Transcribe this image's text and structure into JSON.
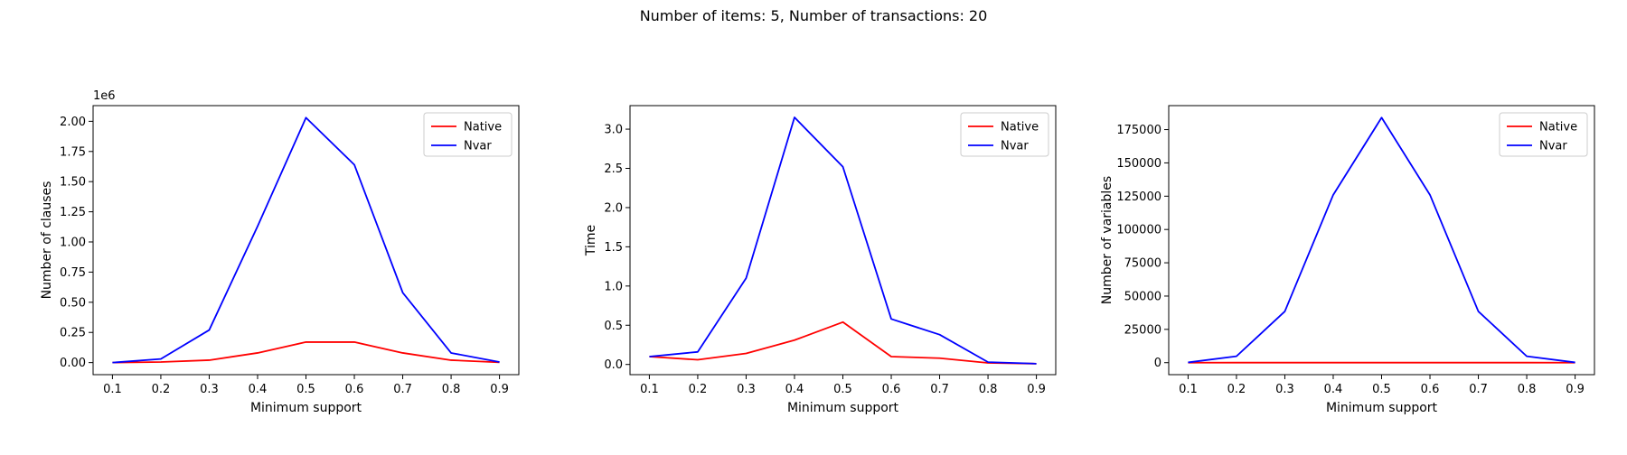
{
  "figure": {
    "title": "Number of items: 5, Number of transactions: 20"
  },
  "colors": {
    "native": "#ff0000",
    "nvar": "#0000ff"
  },
  "chart_data": [
    {
      "type": "line",
      "title": "",
      "xlabel": "Minimum support",
      "ylabel": "Number of clauses",
      "offset_label": "1e6",
      "x": [
        0.1,
        0.2,
        0.3,
        0.4,
        0.5,
        0.6,
        0.7,
        0.8,
        0.9
      ],
      "xticks": [
        "0.1",
        "0.2",
        "0.3",
        "0.4",
        "0.5",
        "0.6",
        "0.7",
        "0.8",
        "0.9"
      ],
      "ylim": [
        -0.1,
        2.13
      ],
      "yticks": [
        "0.00",
        "0.25",
        "0.50",
        "0.75",
        "1.00",
        "1.25",
        "1.50",
        "1.75",
        "2.00"
      ],
      "ytick_values": [
        0,
        0.25,
        0.5,
        0.75,
        1.0,
        1.25,
        1.5,
        1.75,
        2.0
      ],
      "legend": "top-right",
      "series": [
        {
          "name": "Native",
          "color": "#ff0000",
          "values": [
            0.0,
            0.005,
            0.02,
            0.08,
            0.17,
            0.17,
            0.08,
            0.02,
            0.002
          ]
        },
        {
          "name": "Nvar",
          "color": "#0000ff",
          "values": [
            0.0,
            0.03,
            0.27,
            1.13,
            2.03,
            1.64,
            0.58,
            0.08,
            0.005
          ]
        }
      ]
    },
    {
      "type": "line",
      "title": "",
      "xlabel": "Minimum support",
      "ylabel": "Time",
      "offset_label": "",
      "x": [
        0.1,
        0.2,
        0.3,
        0.4,
        0.5,
        0.6,
        0.7,
        0.8,
        0.9
      ],
      "xticks": [
        "0.1",
        "0.2",
        "0.3",
        "0.4",
        "0.5",
        "0.6",
        "0.7",
        "0.8",
        "0.9"
      ],
      "ylim": [
        -0.13,
        3.3
      ],
      "yticks": [
        "0.0",
        "0.5",
        "1.0",
        "1.5",
        "2.0",
        "2.5",
        "3.0"
      ],
      "ytick_values": [
        0,
        0.5,
        1.0,
        1.5,
        2.0,
        2.5,
        3.0
      ],
      "legend": "top-right",
      "series": [
        {
          "name": "Native",
          "color": "#ff0000",
          "values": [
            0.1,
            0.06,
            0.14,
            0.31,
            0.54,
            0.1,
            0.08,
            0.02,
            0.01
          ]
        },
        {
          "name": "Nvar",
          "color": "#0000ff",
          "values": [
            0.1,
            0.16,
            1.1,
            3.15,
            2.52,
            0.58,
            0.38,
            0.03,
            0.01
          ]
        }
      ]
    },
    {
      "type": "line",
      "title": "",
      "xlabel": "Minimum support",
      "ylabel": "Number of variables",
      "offset_label": "",
      "x": [
        0.1,
        0.2,
        0.3,
        0.4,
        0.5,
        0.6,
        0.7,
        0.8,
        0.9
      ],
      "xticks": [
        "0.1",
        "0.2",
        "0.3",
        "0.4",
        "0.5",
        "0.6",
        "0.7",
        "0.8",
        "0.9"
      ],
      "ylim": [
        -9000,
        193000
      ],
      "yticks": [
        "0",
        "25000",
        "50000",
        "75000",
        "100000",
        "125000",
        "150000",
        "175000"
      ],
      "ytick_values": [
        0,
        25000,
        50000,
        75000,
        100000,
        125000,
        150000,
        175000
      ],
      "legend": "top-right",
      "series": [
        {
          "name": "Native",
          "color": "#ff0000",
          "values": [
            5,
            10,
            10,
            10,
            10,
            10,
            10,
            10,
            5
          ]
        },
        {
          "name": "Nvar",
          "color": "#0000ff",
          "values": [
            200,
            4800,
            38500,
            126000,
            184000,
            126000,
            38500,
            4800,
            200
          ]
        }
      ]
    }
  ]
}
